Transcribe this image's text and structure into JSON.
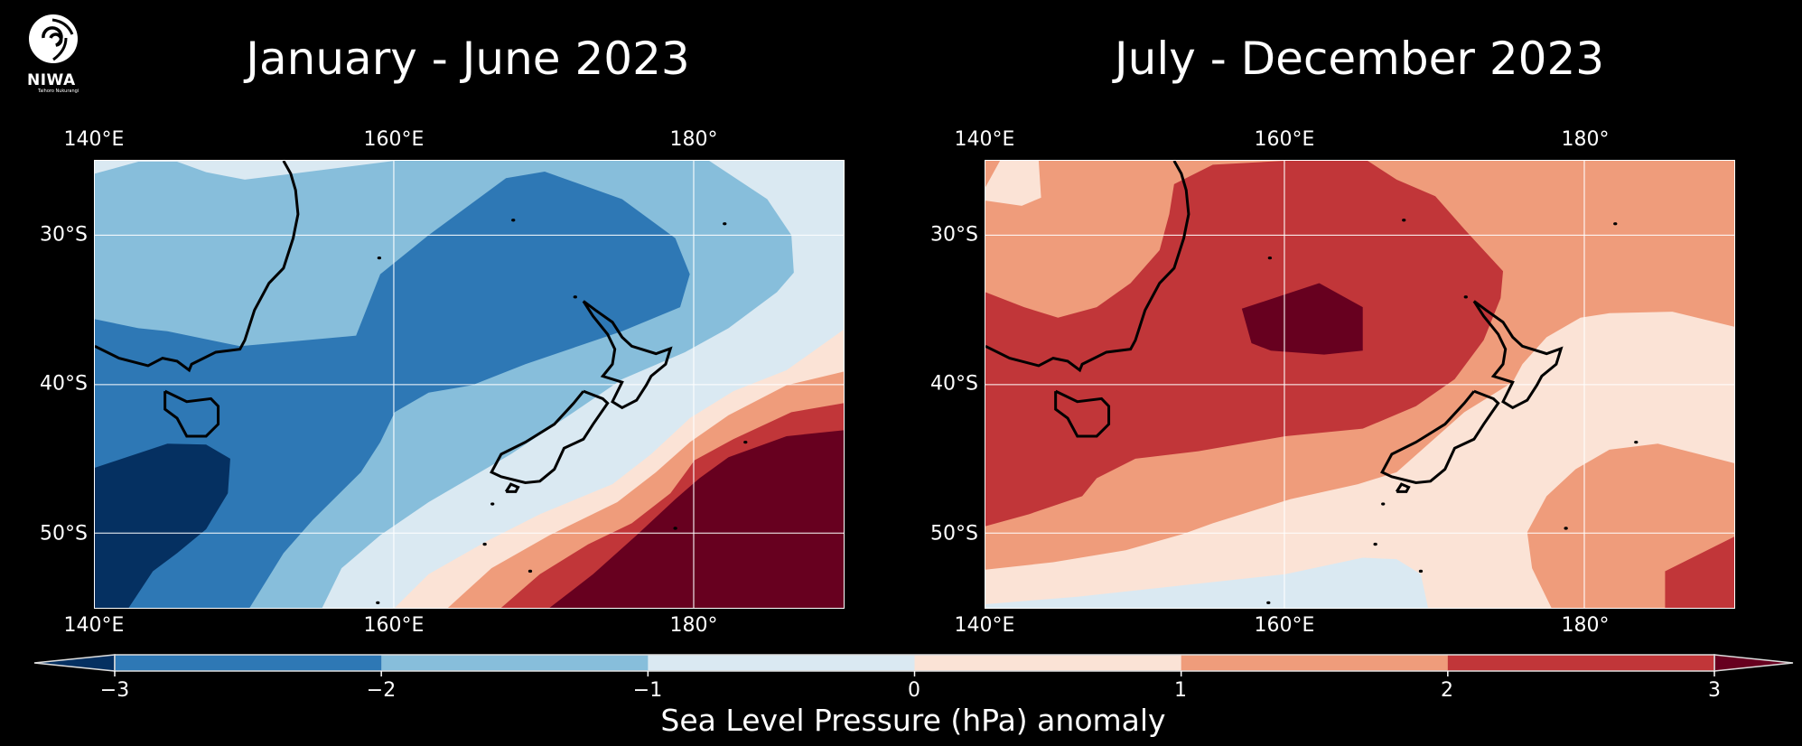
{
  "logo": {
    "name": "NIWA",
    "tagline": "Taihoro Nukurangi"
  },
  "chart_data": [
    {
      "type": "heatmap",
      "subtype": "filled-contour-map",
      "title": "January - June 2023",
      "lon_range": [
        140,
        190
      ],
      "lat_range": [
        -55,
        -25
      ],
      "x_ticks": [
        "140°E",
        "160°E",
        "180°"
      ],
      "y_ticks": [
        "30°S",
        "40°S",
        "50°S"
      ],
      "grid": true,
      "summary": "Negative anomaly (-3 to -2 hPa, below -3 over SW Tasman Sea) across Tasman Sea; positive anomaly (>3 hPa) southeast of NZ"
    },
    {
      "type": "heatmap",
      "subtype": "filled-contour-map",
      "title": "July - December 2023",
      "lon_range": [
        140,
        190
      ],
      "lat_range": [
        -55,
        -25
      ],
      "x_ticks": [
        "140°E",
        "160°E",
        "180°"
      ],
      "y_ticks": [
        "30°S",
        "40°S",
        "50°S"
      ],
      "grid": true,
      "summary": "Positive anomaly 2-3 hPa over Tasman Sea with >3 hPa core near 160°E 36°S; 0-1 hPa east and south of NZ"
    }
  ],
  "colorbar": {
    "label": "Sea Level Pressure (hPa) anomaly",
    "ticks": [
      "−3",
      "−2",
      "−1",
      "0",
      "1",
      "2",
      "3"
    ],
    "levels": [
      -3,
      -2,
      -1,
      0,
      1,
      2,
      3
    ],
    "extend": "both",
    "colors": {
      "lt_m3": "#053061",
      "m3_m2": "#2e78b5",
      "m2_m1": "#87bedb",
      "m1_0": "#dae9f2",
      "0_1": "#fbe3d6",
      "1_2": "#ef9c7b",
      "2_3": "#c13639",
      "gt_3": "#67001f"
    }
  }
}
